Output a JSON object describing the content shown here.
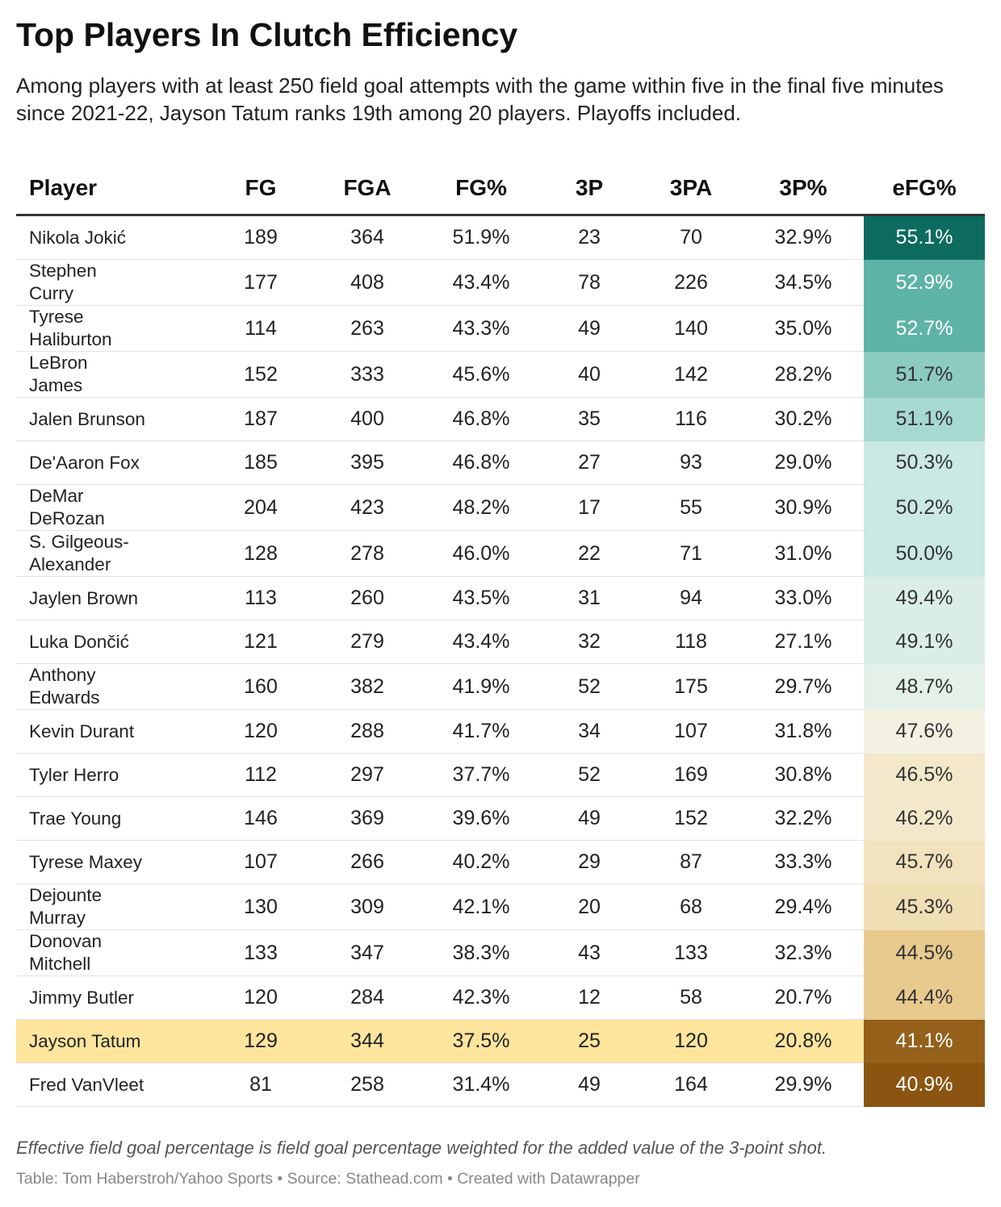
{
  "header": {
    "title": "Top Players In Clutch Efficiency",
    "subtitle": "Among players with at least 250 field goal attempts with the game within five in the final five minutes since 2021-22, Jayson Tatum ranks 19th among 20 players. Playoffs included."
  },
  "table": {
    "columns": [
      "Player",
      "FG",
      "FGA",
      "FG%",
      "3P",
      "3PA",
      "3P%",
      "eFG%"
    ],
    "rows": [
      [
        "Nikola Jokić",
        "189",
        "364",
        "51.9%",
        "23",
        "70",
        "32.9%",
        "55.1%"
      ],
      [
        "Stephen Curry",
        "177",
        "408",
        "43.4%",
        "78",
        "226",
        "34.5%",
        "52.9%"
      ],
      [
        "Tyrese Haliburton",
        "114",
        "263",
        "43.3%",
        "49",
        "140",
        "35.0%",
        "52.7%"
      ],
      [
        "LeBron James",
        "152",
        "333",
        "45.6%",
        "40",
        "142",
        "28.2%",
        "51.7%"
      ],
      [
        "Jalen Brunson",
        "187",
        "400",
        "46.8%",
        "35",
        "116",
        "30.2%",
        "51.1%"
      ],
      [
        "De'Aaron Fox",
        "185",
        "395",
        "46.8%",
        "27",
        "93",
        "29.0%",
        "50.3%"
      ],
      [
        "DeMar DeRozan",
        "204",
        "423",
        "48.2%",
        "17",
        "55",
        "30.9%",
        "50.2%"
      ],
      [
        "S. Gilgeous-Alexander",
        "128",
        "278",
        "46.0%",
        "22",
        "71",
        "31.0%",
        "50.0%"
      ],
      [
        "Jaylen Brown",
        "113",
        "260",
        "43.5%",
        "31",
        "94",
        "33.0%",
        "49.4%"
      ],
      [
        "Luka Dončić",
        "121",
        "279",
        "43.4%",
        "32",
        "118",
        "27.1%",
        "49.1%"
      ],
      [
        "Anthony Edwards",
        "160",
        "382",
        "41.9%",
        "52",
        "175",
        "29.7%",
        "48.7%"
      ],
      [
        "Kevin Durant",
        "120",
        "288",
        "41.7%",
        "34",
        "107",
        "31.8%",
        "47.6%"
      ],
      [
        "Tyler Herro",
        "112",
        "297",
        "37.7%",
        "52",
        "169",
        "30.8%",
        "46.5%"
      ],
      [
        "Trae Young",
        "146",
        "369",
        "39.6%",
        "49",
        "152",
        "32.2%",
        "46.2%"
      ],
      [
        "Tyrese Maxey",
        "107",
        "266",
        "40.2%",
        "29",
        "87",
        "33.3%",
        "45.7%"
      ],
      [
        "Dejounte Murray",
        "130",
        "309",
        "42.1%",
        "20",
        "68",
        "29.4%",
        "45.3%"
      ],
      [
        "Donovan Mitchell",
        "133",
        "347",
        "38.3%",
        "43",
        "133",
        "32.3%",
        "44.5%"
      ],
      [
        "Jimmy Butler",
        "120",
        "284",
        "42.3%",
        "12",
        "58",
        "20.7%",
        "44.4%"
      ],
      [
        "Jayson Tatum",
        "129",
        "344",
        "37.5%",
        "25",
        "120",
        "20.8%",
        "41.1%"
      ],
      [
        "Fred VanVleet",
        "81",
        "258",
        "31.4%",
        "49",
        "164",
        "29.9%",
        "40.9%"
      ]
    ],
    "efg_colors": [
      "#0e6b60",
      "#5db3a6",
      "#5db3a6",
      "#8dcbc1",
      "#a6d9d0",
      "#c9e9e2",
      "#c9e9e2",
      "#c9e9e2",
      "#daeee7",
      "#daeee7",
      "#e3f1e9",
      "#f3f1e2",
      "#f4e8cb",
      "#f4e8cb",
      "#f2e2bd",
      "#f0deb4",
      "#e8c98e",
      "#e8c98e",
      "#94601a",
      "#8b5410"
    ],
    "efg_text_colors": [
      "#ffffff",
      "#ffffff",
      "#ffffff",
      "#333333",
      "#333333",
      "#333333",
      "#333333",
      "#333333",
      "#333333",
      "#333333",
      "#333333",
      "#333333",
      "#333333",
      "#333333",
      "#333333",
      "#333333",
      "#333333",
      "#333333",
      "#ffffff",
      "#ffffff"
    ],
    "highlight_row": 18,
    "highlight_color": "#fde59d"
  },
  "footer": {
    "note": "Effective field goal percentage is field goal percentage weighted for the added value of the 3-point shot.",
    "credit": "Table: Tom Haberstroh/Yahoo Sports • Source: Stathead.com • Created with Datawrapper"
  }
}
